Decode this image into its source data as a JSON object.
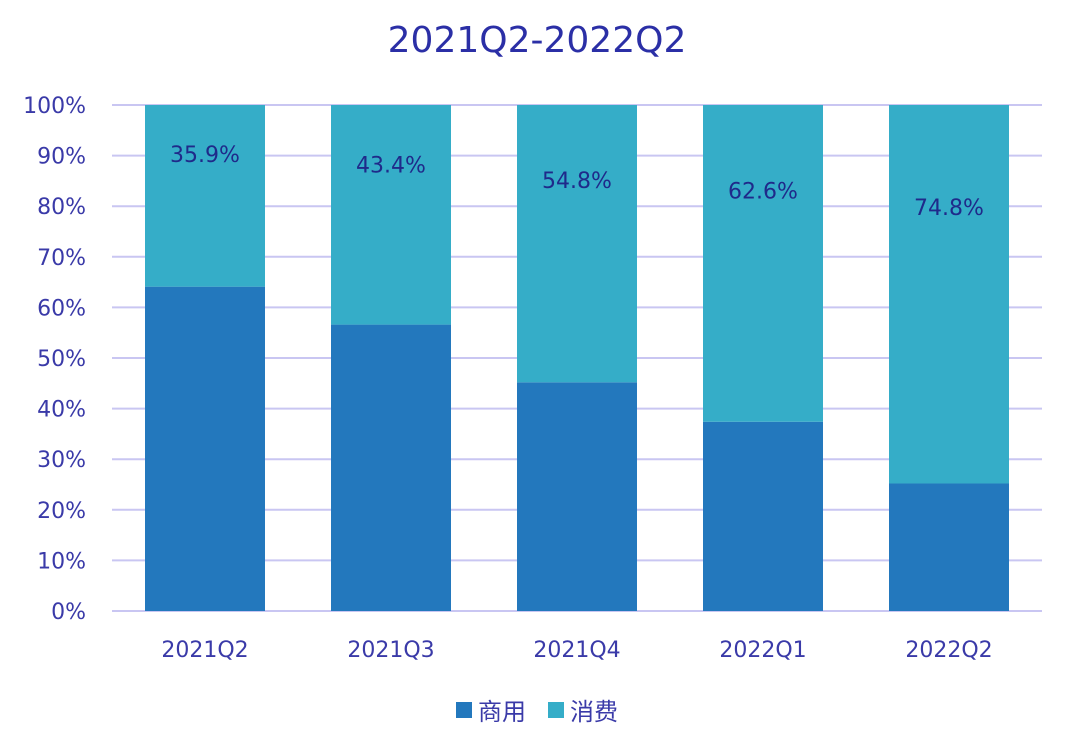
{
  "chart_data": {
    "type": "bar",
    "stacked": true,
    "title": "2021Q2-2022Q2",
    "categories": [
      "2021Q2",
      "2021Q3",
      "2021Q4",
      "2022Q1",
      "2022Q2"
    ],
    "series": [
      {
        "name": "商用",
        "values": [
          64.1,
          56.6,
          45.2,
          37.4,
          25.2
        ],
        "color": "#2378bd"
      },
      {
        "name": "消费",
        "values": [
          35.9,
          43.4,
          54.8,
          62.6,
          74.8
        ],
        "color": "#35adc8"
      }
    ],
    "data_labels": [
      "35.9%",
      "43.4%",
      "54.8%",
      "62.6%",
      "74.8%"
    ],
    "yticks": [
      "0%",
      "10%",
      "20%",
      "30%",
      "40%",
      "50%",
      "60%",
      "70%",
      "80%",
      "90%",
      "100%"
    ],
    "ylim": [
      0,
      100
    ],
    "grid": true,
    "legend_position": "bottom"
  },
  "colors": {
    "title": "#2b2fa6",
    "axis_text": "#3a3aa8",
    "gridline": "#c9c6f2",
    "data_label": "#1f2a8a"
  }
}
